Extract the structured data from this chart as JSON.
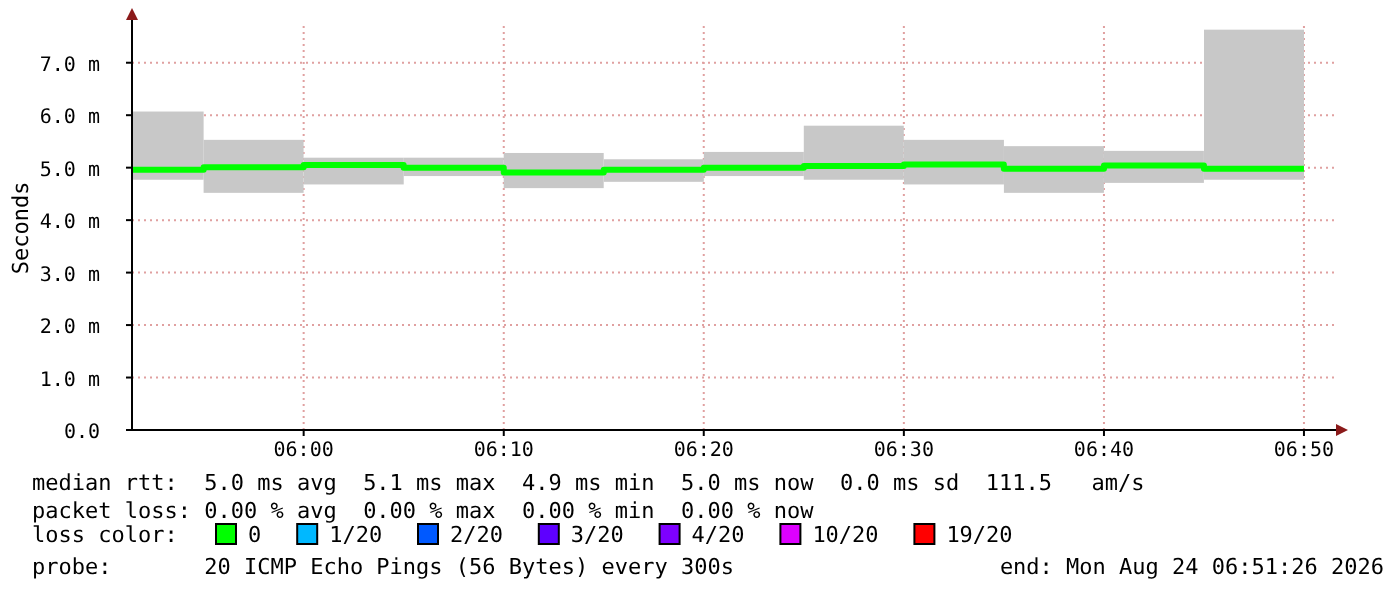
{
  "chart_data": {
    "type": "bar",
    "ylabel": "Seconds",
    "xlim": [
      5.857,
      6.86
    ],
    "ylim": [
      0,
      7.7
    ],
    "xticks": [
      {
        "value": 6,
        "label": "06:00"
      },
      {
        "value": 6.1667,
        "label": "06:10"
      },
      {
        "value": 6.3333,
        "label": "06:20"
      },
      {
        "value": 6.5,
        "label": "06:30"
      },
      {
        "value": 6.6667,
        "label": "06:40"
      },
      {
        "value": 6.8333,
        "label": "06:50"
      }
    ],
    "yticks": [
      {
        "value": 0,
        "label": "0.0"
      },
      {
        "value": 1,
        "label": "1.0 m"
      },
      {
        "value": 2,
        "label": "2.0 m"
      },
      {
        "value": 3,
        "label": "3.0 m"
      },
      {
        "value": 4,
        "label": "4.0 m"
      },
      {
        "value": 5,
        "label": "5.0 m"
      },
      {
        "value": 6,
        "label": "6.0 m"
      },
      {
        "value": 7,
        "label": "7.0 m"
      }
    ],
    "grid": true,
    "legend": "bottom",
    "series": [
      {
        "color": "#c8c8c8",
        "x": [
          5.875,
          5.9583,
          6.0417,
          6.125,
          6.2083,
          6.2917,
          6.375,
          6.4583,
          6.5417,
          6.625,
          6.7083,
          6.7917
        ],
        "base": [
          4.77,
          4.52,
          4.68,
          4.84,
          4.61,
          4.73,
          4.84,
          4.77,
          4.68,
          4.52,
          4.71,
          4.77
        ],
        "values": [
          1.3,
          1.01,
          0.51,
          0.35,
          0.67,
          0.43,
          0.46,
          1.03,
          0.85,
          0.89,
          0.61,
          2.86
        ]
      },
      {
        "type": "step",
        "name": "0",
        "color": "#00ff00",
        "x": [
          5.857,
          5.9167,
          6,
          6.0833,
          6.1667,
          6.25,
          6.3333,
          6.4167,
          6.5,
          6.5833,
          6.6667,
          6.75,
          6.8333
        ],
        "values": [
          4.96,
          5.01,
          5.05,
          5,
          4.91,
          4.96,
          5,
          5.03,
          5.06,
          4.98,
          5.04,
          4.98,
          4.98
        ]
      },
      {
        "type": "step",
        "name": "1/20",
        "color": "#00b8ff"
      },
      {
        "type": "step",
        "name": "2/20",
        "color": "#0059ff"
      },
      {
        "type": "step",
        "name": "3/20",
        "color": "#5e00ff"
      },
      {
        "type": "step",
        "name": "4/20",
        "color": "#7e00ff"
      },
      {
        "type": "step",
        "name": "10/20",
        "color": "#dd00ff"
      },
      {
        "type": "step",
        "name": "19/20",
        "color": "#ff0000"
      }
    ],
    "annotations": [
      "median rtt:  5.0 ms avg  5.1 ms max  4.9 ms min  5.0 ms now  0.0 ms sd  111.5   am/s",
      "packet loss: 0.00 % avg  0.00 % max  0.00 % min  0.00 % now",
      "loss color:",
      "probe:       20 ICMP Echo Pings (56 Bytes) every 300s",
      "end: Mon Aug 24 06:51:26 2026"
    ]
  }
}
